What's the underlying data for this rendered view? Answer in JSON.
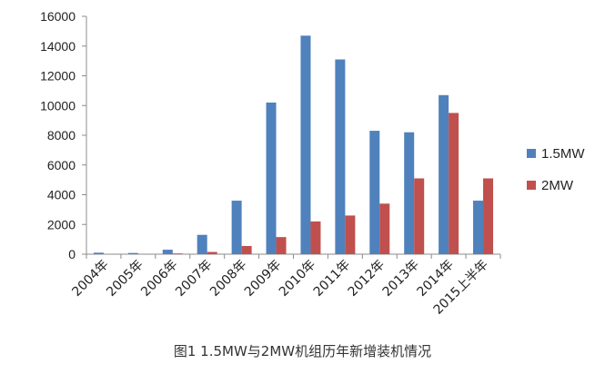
{
  "caption": "图1 1.5MW与2MW机组历年新增装机情况",
  "chart_data": {
    "type": "bar",
    "title": "",
    "xlabel": "",
    "ylabel": "",
    "categories": [
      "2004年",
      "2005年",
      "2006年",
      "2007年",
      "2008年",
      "2009年",
      "2010年",
      "2011年",
      "2012年",
      "2013年",
      "2014年",
      "2015上半年"
    ],
    "series": [
      {
        "name": "1.5MW",
        "color": "#4f81bd",
        "values": [
          100,
          80,
          300,
          1300,
          3600,
          10200,
          14700,
          13100,
          8300,
          8200,
          10700,
          3600
        ]
      },
      {
        "name": "2MW",
        "color": "#c0504d",
        "values": [
          0,
          0,
          50,
          150,
          550,
          1150,
          2200,
          2600,
          3400,
          5100,
          9500,
          5100
        ]
      }
    ],
    "ylim": [
      0,
      16000
    ],
    "yticks": [
      "0",
      "2000",
      "4000",
      "6000",
      "8000",
      "10000",
      "12000",
      "14000",
      "16000"
    ],
    "grid": false,
    "legend_position": "right"
  }
}
